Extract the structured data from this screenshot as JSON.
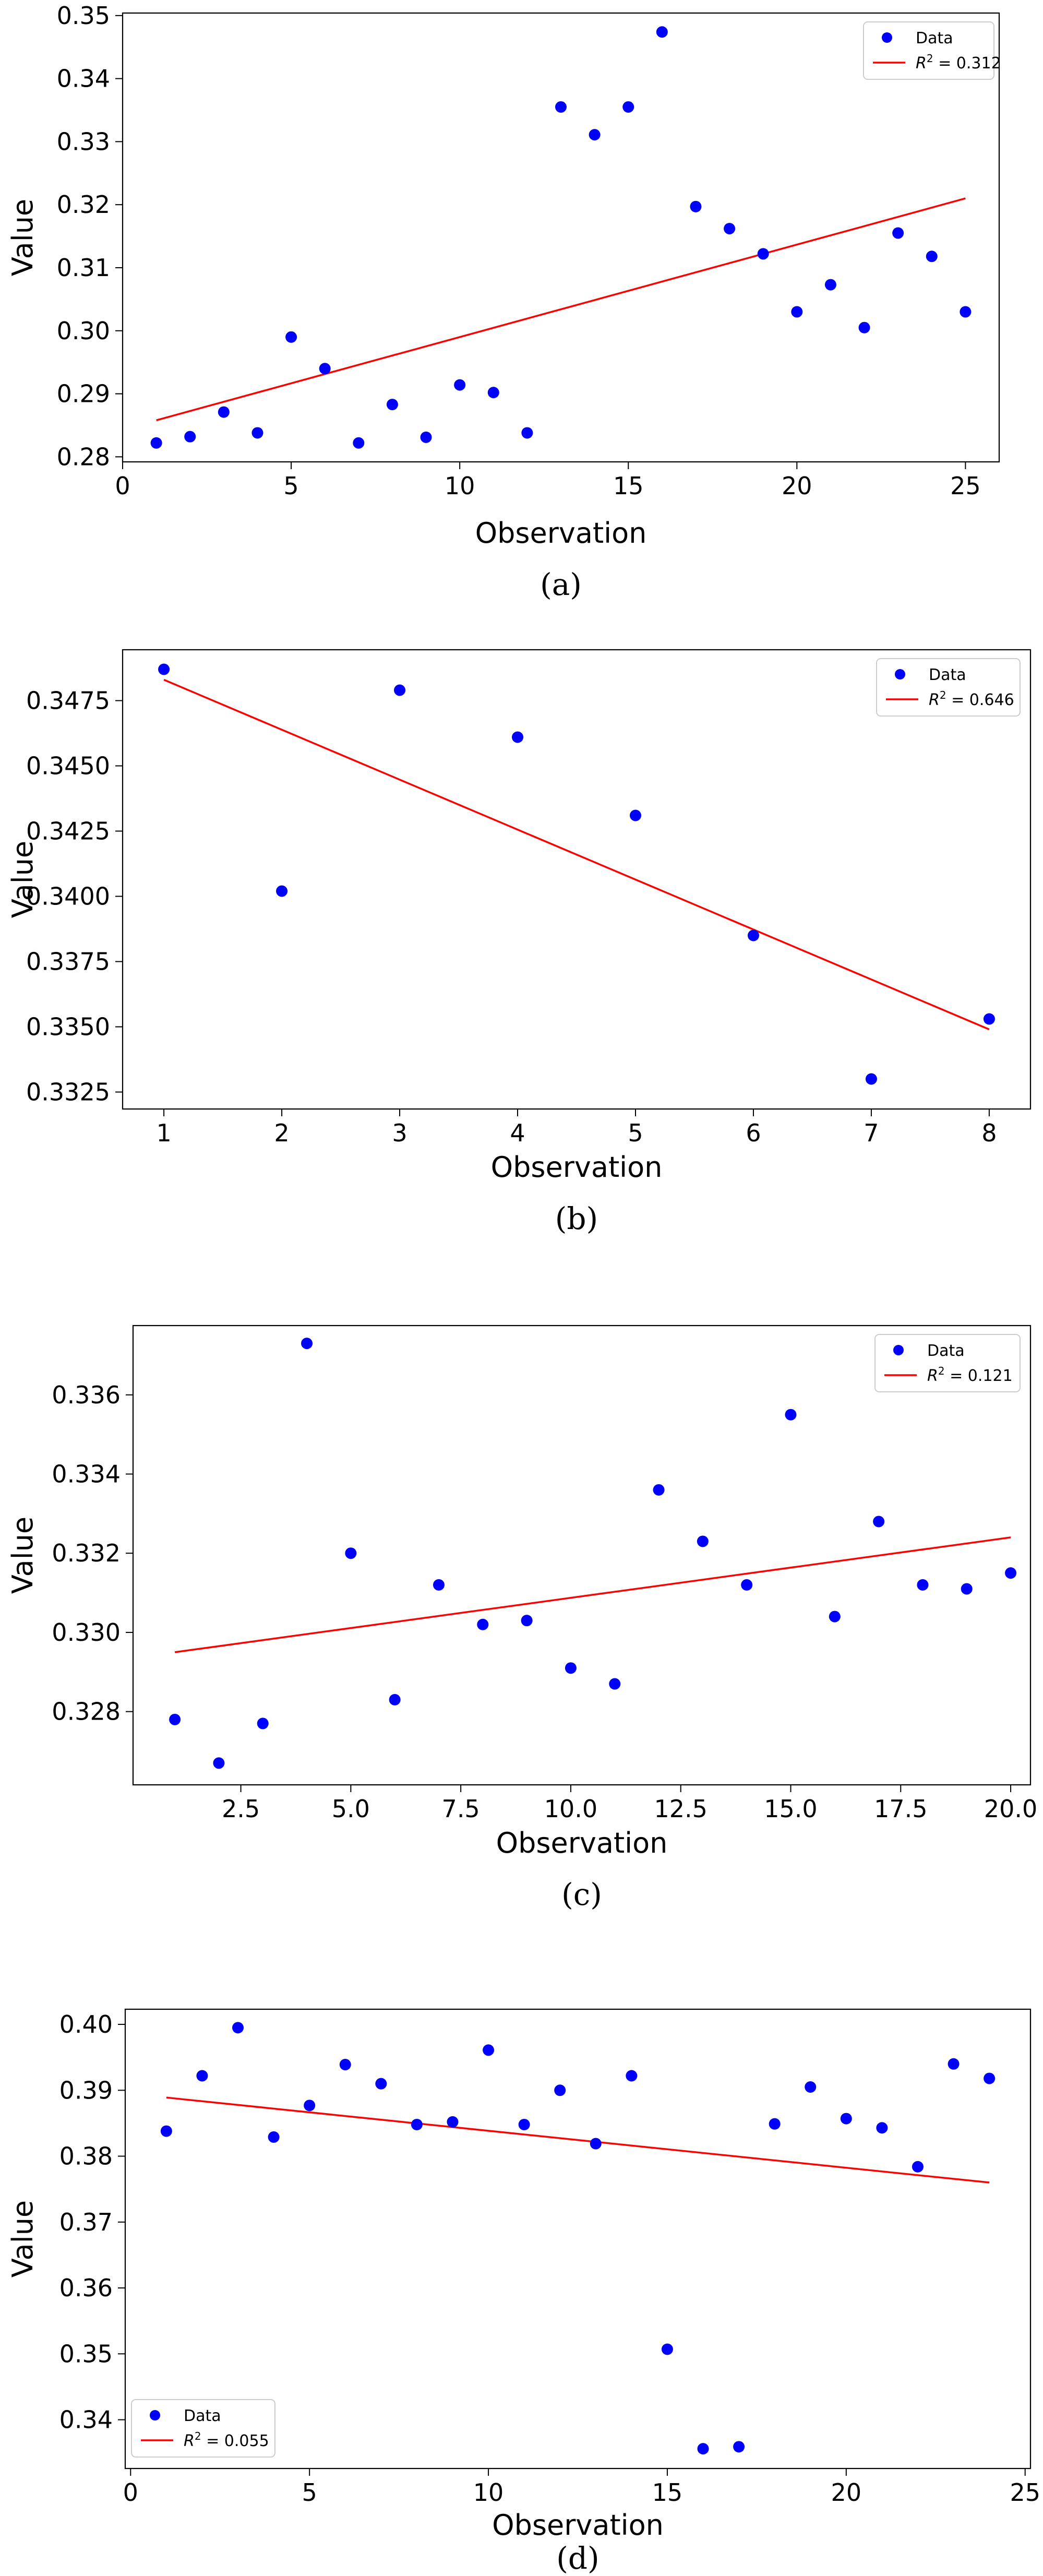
{
  "chart_data": [
    {
      "type": "scatter",
      "caption": "(a)",
      "xlabel": "Observation",
      "ylabel": "Value",
      "xlim": [
        0,
        26
      ],
      "ylim": [
        0.2792,
        0.3504
      ],
      "xticks": [
        0,
        5,
        10,
        15,
        20,
        25
      ],
      "xtick_labels": [
        "0",
        "5",
        "10",
        "15",
        "20",
        "25"
      ],
      "yticks": [
        0.28,
        0.29,
        0.3,
        0.31,
        0.32,
        0.33,
        0.34,
        0.35
      ],
      "ytick_labels": [
        "0.28",
        "0.29",
        "0.30",
        "0.31",
        "0.32",
        "0.33",
        "0.34",
        "0.35"
      ],
      "grid": false,
      "legend_position": "top-right",
      "series": [
        {
          "name": "Data",
          "color": "#0000ff",
          "marker": "circle",
          "x": [
            1,
            2,
            3,
            4,
            5,
            6,
            7,
            8,
            9,
            10,
            11,
            12,
            13,
            14,
            15,
            16,
            17,
            18,
            19,
            20,
            21,
            22,
            23,
            24,
            25
          ],
          "y": [
            0.2822,
            0.2832,
            0.2871,
            0.2838,
            0.299,
            0.294,
            0.2822,
            0.2883,
            0.2831,
            0.2914,
            0.2902,
            0.2838,
            0.3355,
            0.3311,
            0.3355,
            0.3474,
            0.3197,
            0.3162,
            0.3122,
            0.303,
            0.3073,
            0.3005,
            0.3155,
            0.3118,
            0.303
          ]
        }
      ],
      "trend": {
        "label_prefix": "R",
        "label_sup": "2",
        "label_suffix": " = 0.312",
        "color": "#ff0000",
        "x": [
          1,
          25
        ],
        "y": [
          0.2858,
          0.321
        ]
      }
    },
    {
      "type": "scatter",
      "caption": "(b)",
      "xlabel": "Observation",
      "ylabel": "Value",
      "xlim": [
        0.65,
        8.35
      ],
      "ylim": [
        0.33185,
        0.34945
      ],
      "xticks": [
        1,
        2,
        3,
        4,
        5,
        6,
        7,
        8
      ],
      "xtick_labels": [
        "1",
        "2",
        "3",
        "4",
        "5",
        "6",
        "7",
        "8"
      ],
      "yticks": [
        0.3325,
        0.335,
        0.3375,
        0.34,
        0.3425,
        0.345,
        0.3475
      ],
      "ytick_labels": [
        "0.3325",
        "0.3350",
        "0.3375",
        "0.3400",
        "0.3425",
        "0.3450",
        "0.3475"
      ],
      "grid": false,
      "legend_position": "top-right",
      "series": [
        {
          "name": "Data",
          "color": "#0000ff",
          "marker": "circle",
          "x": [
            1,
            2,
            3,
            4,
            5,
            6,
            7,
            8
          ],
          "y": [
            0.3487,
            0.3402,
            0.3479,
            0.3461,
            0.3431,
            0.3385,
            0.333,
            0.3353
          ]
        }
      ],
      "trend": {
        "label_prefix": "R",
        "label_sup": "2",
        "label_suffix": " = 0.646",
        "color": "#ff0000",
        "x": [
          1,
          8
        ],
        "y": [
          0.3483,
          0.3349
        ]
      }
    },
    {
      "type": "scatter",
      "caption": "(c)",
      "xlabel": "Observation",
      "ylabel": "Value",
      "xlim": [
        0.05,
        20.45
      ],
      "ylim": [
        0.32615,
        0.33775
      ],
      "xticks": [
        2.5,
        5.0,
        7.5,
        10.0,
        12.5,
        15.0,
        17.5,
        20.0
      ],
      "xtick_labels": [
        "2.5",
        "5.0",
        "7.5",
        "10.0",
        "12.5",
        "15.0",
        "17.5",
        "20.0"
      ],
      "yticks": [
        0.328,
        0.33,
        0.332,
        0.334,
        0.336
      ],
      "ytick_labels": [
        "0.328",
        "0.330",
        "0.332",
        "0.334",
        "0.336"
      ],
      "grid": false,
      "legend_position": "top-right",
      "series": [
        {
          "name": "Data",
          "color": "#0000ff",
          "marker": "circle",
          "x": [
            1,
            2,
            3,
            4,
            5,
            6,
            7,
            8,
            9,
            10,
            11,
            12,
            13,
            14,
            15,
            16,
            17,
            18,
            19,
            20
          ],
          "y": [
            0.3278,
            0.3267,
            0.3277,
            0.3373,
            0.332,
            0.3283,
            0.3312,
            0.3302,
            0.3303,
            0.3291,
            0.3287,
            0.3336,
            0.3323,
            0.3312,
            0.3355,
            0.3304,
            0.3328,
            0.3312,
            0.3311,
            0.3315
          ]
        }
      ],
      "trend": {
        "label_prefix": "R",
        "label_sup": "2",
        "label_suffix": " = 0.121",
        "color": "#ff0000",
        "x": [
          1,
          20
        ],
        "y": [
          0.3295,
          0.3324
        ]
      }
    },
    {
      "type": "scatter",
      "caption": "(d)",
      "xlabel": "Observation",
      "ylabel": "Value",
      "xlim": [
        -0.15,
        25.15
      ],
      "ylim": [
        0.3326,
        0.4023
      ],
      "xticks": [
        0,
        5,
        10,
        15,
        20,
        25
      ],
      "xtick_labels": [
        "0",
        "5",
        "10",
        "15",
        "20",
        "25"
      ],
      "yticks": [
        0.34,
        0.35,
        0.36,
        0.37,
        0.38,
        0.39,
        0.4
      ],
      "ytick_labels": [
        "0.34",
        "0.35",
        "0.36",
        "0.37",
        "0.38",
        "0.39",
        "0.40"
      ],
      "grid": false,
      "legend_position": "bottom-left",
      "series": [
        {
          "name": "Data",
          "color": "#0000ff",
          "marker": "circle",
          "x": [
            1,
            2,
            3,
            4,
            5,
            6,
            7,
            8,
            9,
            10,
            11,
            12,
            13,
            14,
            15,
            16,
            17,
            18,
            19,
            20,
            21,
            22,
            23,
            24
          ],
          "y": [
            0.3838,
            0.3922,
            0.3995,
            0.3829,
            0.3877,
            0.3939,
            0.391,
            0.3848,
            0.3852,
            0.3961,
            0.3848,
            0.39,
            0.3819,
            0.3922,
            0.3507,
            0.3356,
            0.3359,
            0.3849,
            0.3905,
            0.3857,
            0.3843,
            0.3784,
            0.394,
            0.3918
          ]
        }
      ],
      "trend": {
        "label_prefix": "R",
        "label_sup": "2",
        "label_suffix": " = 0.055",
        "color": "#ff0000",
        "x": [
          1,
          24
        ],
        "y": [
          0.3889,
          0.376
        ]
      }
    }
  ]
}
